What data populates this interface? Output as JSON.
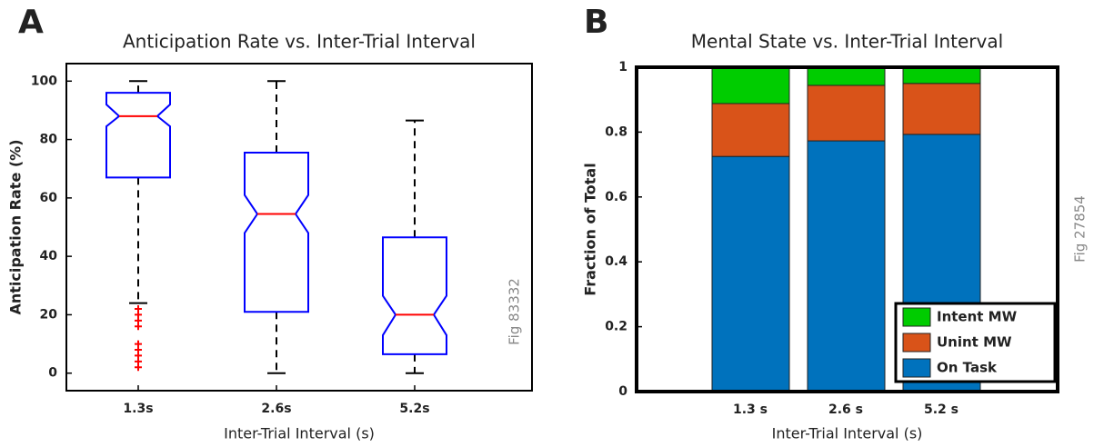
{
  "chart_data": [
    {
      "type": "box",
      "panel_label": "A",
      "title": "Anticipation Rate vs. Inter-Trial Interval",
      "xlabel": "Inter-Trial Interval (s)",
      "ylabel": "Anticipation Rate (%)",
      "side_note": "Fig 83332",
      "categories": [
        "1.3s",
        "2.6s",
        "5.2s"
      ],
      "boxes": [
        {
          "whisker_low": 24,
          "q1": 67,
          "notch_low": 84.5,
          "median": 88,
          "notch_high": 92,
          "q3": 96,
          "whisker_high": 100,
          "outliers": [
            22,
            20,
            18,
            16,
            10,
            8,
            6,
            4,
            2
          ]
        },
        {
          "whisker_low": 0,
          "q1": 21,
          "notch_low": 48,
          "median": 54.5,
          "notch_high": 61,
          "q3": 75.5,
          "whisker_high": 100,
          "outliers": []
        },
        {
          "whisker_low": 0,
          "q1": 6.5,
          "notch_low": 13,
          "median": 20,
          "notch_high": 26.5,
          "q3": 46.5,
          "whisker_high": 86.5,
          "outliers": []
        }
      ],
      "box_color": "#0000ff",
      "median_color": "#ff0000",
      "outlier_color": "#ff0000",
      "ylim": [
        -6,
        106
      ],
      "yticks": [
        0,
        20,
        40,
        60,
        80,
        100
      ]
    },
    {
      "type": "stacked_bar",
      "panel_label": "B",
      "title": "Mental State vs. Inter-Trial Interval",
      "xlabel": "Inter-Trial Interval (s)",
      "ylabel": "Fraction of Total",
      "side_note": "Fig 27854",
      "categories": [
        "1.3 s",
        "2.6 s",
        "5.2 s"
      ],
      "series": [
        {
          "name": "On Task",
          "color": "#0072bd",
          "values": [
            0.725,
            0.773,
            0.793
          ]
        },
        {
          "name": "Unint MW",
          "color": "#d95319",
          "values": [
            0.163,
            0.171,
            0.157
          ]
        },
        {
          "name": "Intent MW",
          "color": "#00cc00",
          "values": [
            0.112,
            0.056,
            0.05
          ]
        }
      ],
      "legend": "lower right",
      "ylim": [
        0,
        1
      ],
      "yticks": [
        0,
        0.2,
        0.4,
        0.6,
        0.8,
        1
      ]
    }
  ]
}
